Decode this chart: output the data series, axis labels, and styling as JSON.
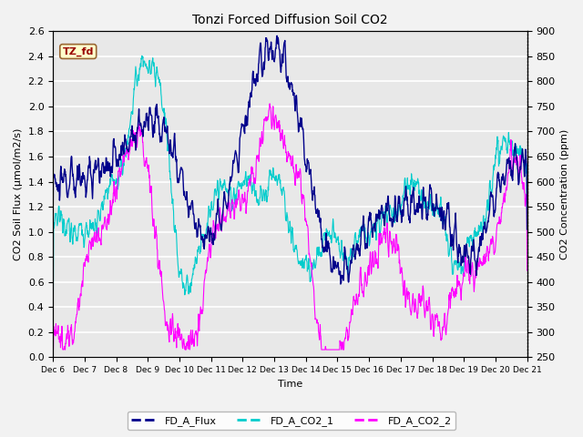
{
  "title": "Tonzi Forced Diffusion Soil CO2",
  "xlabel": "Time",
  "ylabel_left": "CO2 Soil Flux (μmol/m2/s)",
  "ylabel_right": "CO2 Concentration (ppm)",
  "ylim_left": [
    0.0,
    2.6
  ],
  "ylim_right": [
    250,
    900
  ],
  "yticks_left": [
    0.0,
    0.2,
    0.4,
    0.6,
    0.8,
    1.0,
    1.2,
    1.4,
    1.6,
    1.8,
    2.0,
    2.2,
    2.4,
    2.6
  ],
  "yticks_right": [
    250,
    300,
    350,
    400,
    450,
    500,
    550,
    600,
    650,
    700,
    750,
    800,
    850,
    900
  ],
  "xtick_labels": [
    "Dec 6",
    "Dec 7",
    "Dec 8",
    "Dec 9",
    "Dec 10",
    "Dec 11",
    "Dec 12",
    "Dec 13",
    "Dec 14",
    "Dec 15",
    "Dec 16",
    "Dec 17",
    "Dec 18",
    "Dec 19",
    "Dec 20",
    "Dec 21"
  ],
  "color_flux": "#00008B",
  "color_co2_1": "#00CCCC",
  "color_co2_2": "#FF00FF",
  "label_flux": "FD_A_Flux",
  "label_co2_1": "FD_A_CO2_1",
  "label_co2_2": "FD_A_CO2_2",
  "tag_text": "TZ_fd",
  "tag_bg": "#FFFFCC",
  "tag_border": "#996633",
  "tag_text_color": "#990000",
  "plot_bg": "#E8E8E8",
  "grid_color": "#FFFFFF",
  "fig_bg": "#F2F2F2"
}
